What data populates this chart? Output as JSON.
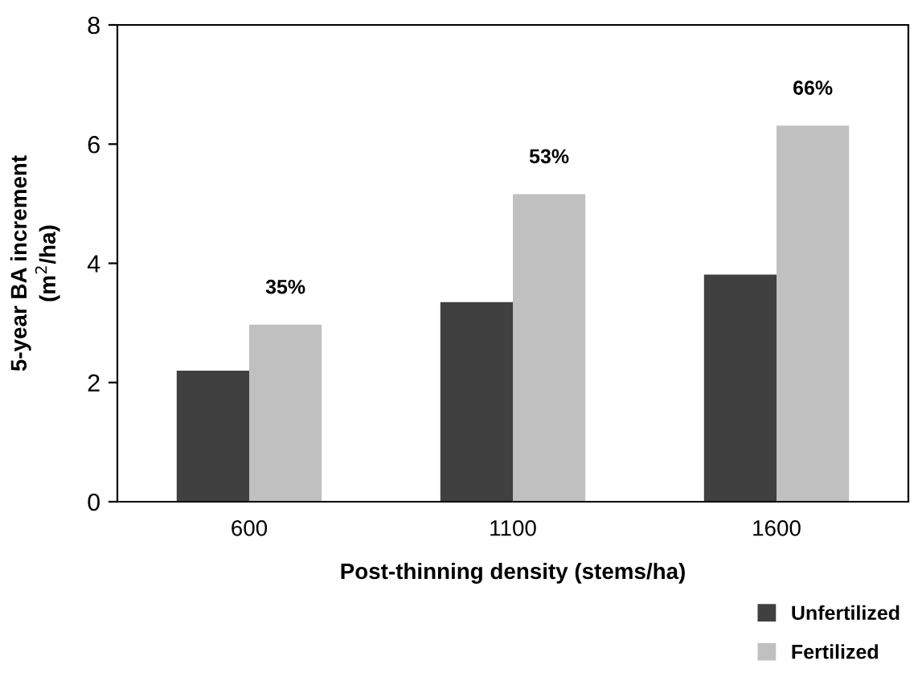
{
  "chart_data": {
    "type": "bar",
    "xlabel": "Post-thinning density (stems/ha)",
    "ylabel": "5-year BA increment\n(m$^{2}$/ha)",
    "categories": [
      "600",
      "1100",
      "1600"
    ],
    "series": [
      {
        "name": "Unfertilized",
        "color": "#404040",
        "values": [
          2.2,
          3.35,
          3.81
        ]
      },
      {
        "name": "Fertilized",
        "color": "#c0c0c0",
        "values": [
          2.97,
          5.16,
          6.31
        ]
      }
    ],
    "annotations": [
      {
        "text": "35%",
        "x": "600",
        "y": 2.97
      },
      {
        "text": "53%",
        "x": "1100",
        "y": 5.16
      },
      {
        "text": "66%",
        "x": "1600",
        "y": 6.31
      }
    ],
    "ylim": [
      0,
      8
    ],
    "yticks": [
      0,
      2,
      4,
      6,
      8
    ],
    "grid": false,
    "legend": "bottom right"
  }
}
